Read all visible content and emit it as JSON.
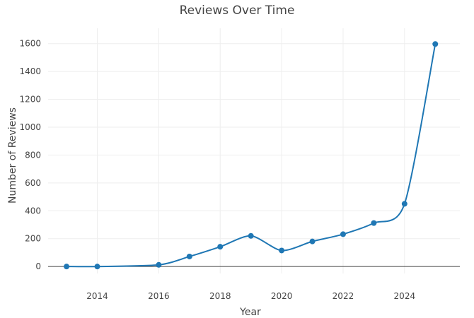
{
  "chart_data": {
    "type": "line",
    "title": "Reviews Over Time",
    "xlabel": "Year",
    "ylabel": "Number of Reviews",
    "x": [
      2013,
      2014,
      2016,
      2017,
      2018,
      2019,
      2020,
      2021,
      2022,
      2023,
      2024,
      2025
    ],
    "series": [
      {
        "values": [
          0,
          0,
          12,
          72,
          142,
          220,
          115,
          180,
          232,
          312,
          450,
          1597
        ]
      }
    ],
    "xlim": [
      2012.4,
      2025.8
    ],
    "ylim": [
      -50,
      1710
    ],
    "x_ticks": [
      2014,
      2016,
      2018,
      2020,
      2022,
      2024
    ],
    "y_ticks": [
      0,
      200,
      400,
      600,
      800,
      1000,
      1200,
      1400,
      1600
    ],
    "grid": true,
    "line_color": "#1f77b4",
    "marker_color": "#1f77b4"
  }
}
